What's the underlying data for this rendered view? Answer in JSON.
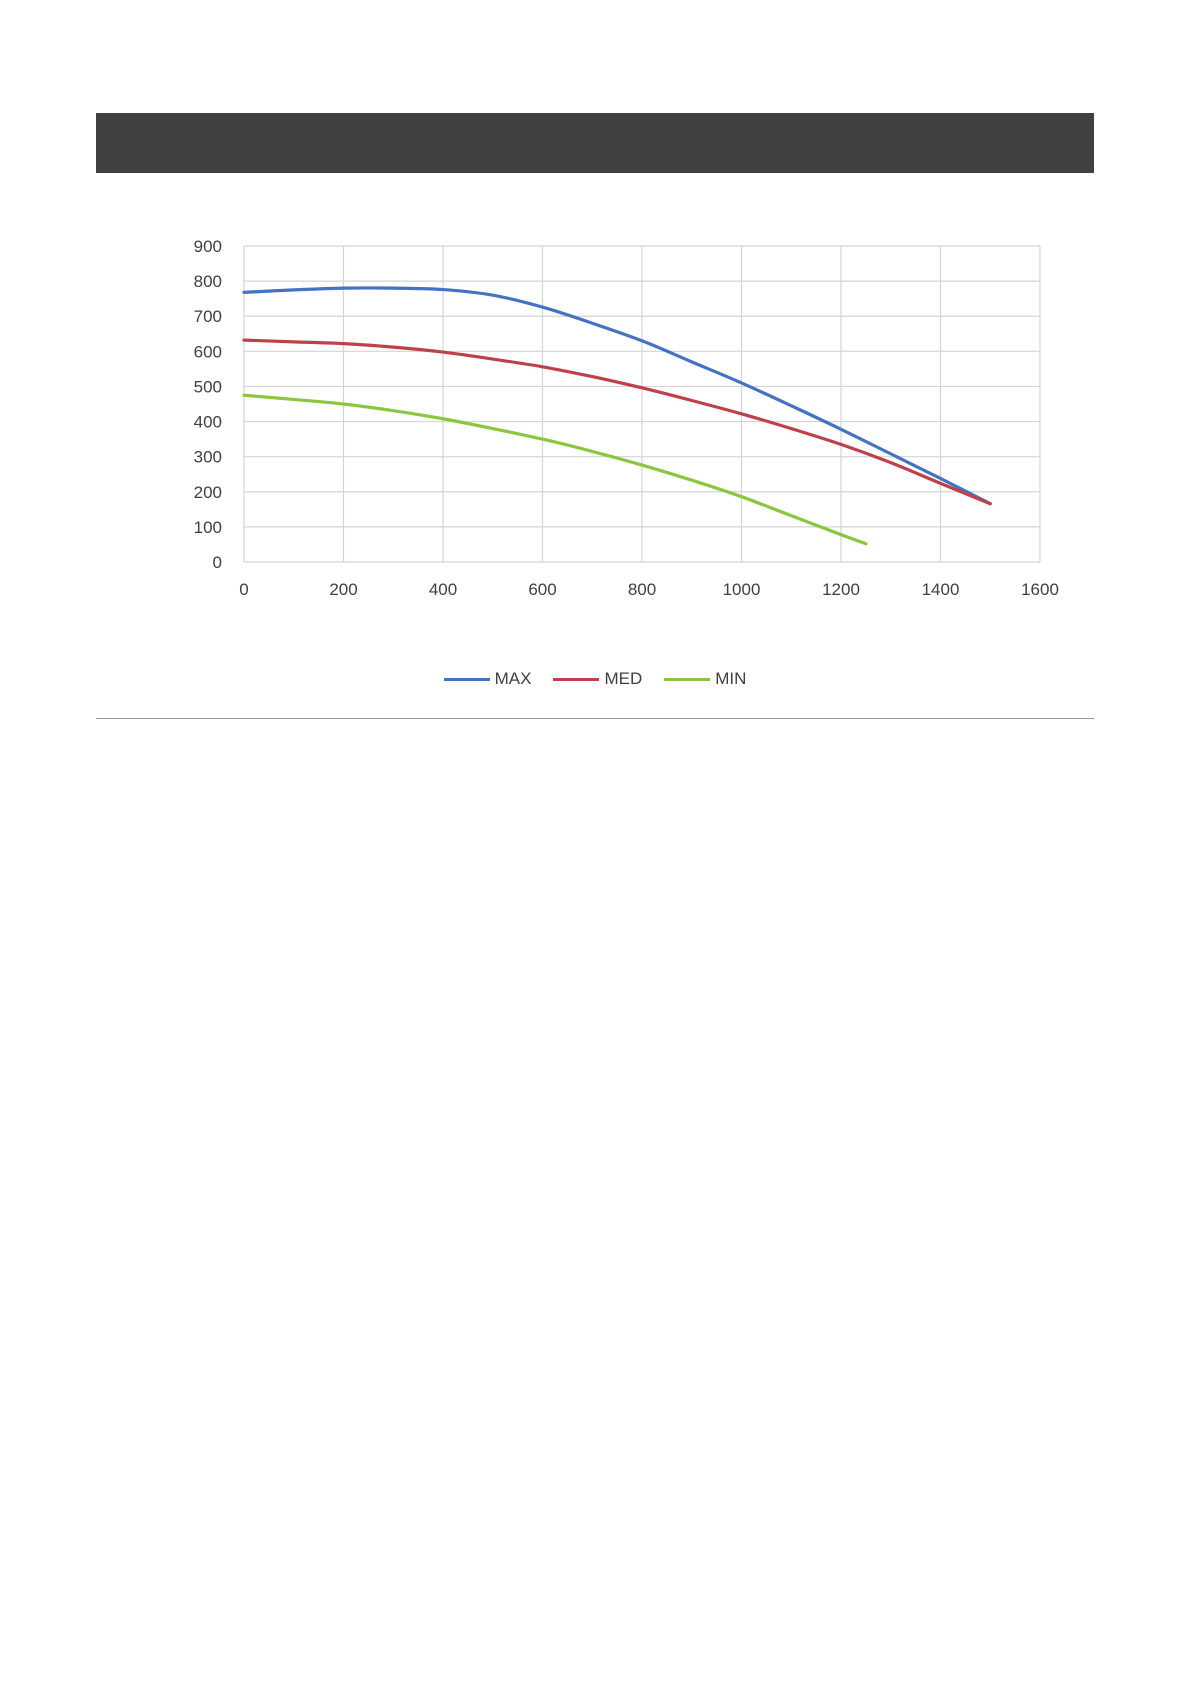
{
  "chart_data": {
    "type": "line",
    "title": "",
    "xlabel": "",
    "ylabel": "",
    "xlim": [
      0,
      1600
    ],
    "ylim": [
      0,
      900
    ],
    "x_ticks": [
      0,
      200,
      400,
      600,
      800,
      1000,
      1200,
      1400,
      1600
    ],
    "y_ticks": [
      0,
      100,
      200,
      300,
      400,
      500,
      600,
      700,
      800,
      900
    ],
    "grid": true,
    "legend_position": "bottom",
    "series": [
      {
        "name": "MAX",
        "color": "#4472c4",
        "x": [
          0,
          100,
          200,
          300,
          400,
          500,
          600,
          700,
          800,
          900,
          1000,
          1100,
          1200,
          1300,
          1400,
          1500
        ],
        "y": [
          768,
          775,
          780,
          780,
          776,
          760,
          726,
          680,
          630,
          570,
          510,
          445,
          378,
          308,
          238,
          166
        ]
      },
      {
        "name": "MED",
        "color": "#c0404a",
        "x": [
          0,
          100,
          200,
          300,
          400,
          500,
          600,
          700,
          800,
          900,
          1000,
          1100,
          1200,
          1300,
          1400,
          1500
        ],
        "y": [
          632,
          627,
          622,
          612,
          598,
          578,
          556,
          528,
          496,
          460,
          422,
          380,
          335,
          283,
          224,
          166
        ]
      },
      {
        "name": "MIN",
        "color": "#8cc63f",
        "x": [
          0,
          100,
          200,
          300,
          400,
          500,
          600,
          700,
          800,
          900,
          1000,
          1100,
          1200,
          1250
        ],
        "y": [
          475,
          463,
          450,
          431,
          408,
          380,
          350,
          315,
          276,
          233,
          186,
          132,
          78,
          52
        ]
      }
    ]
  }
}
